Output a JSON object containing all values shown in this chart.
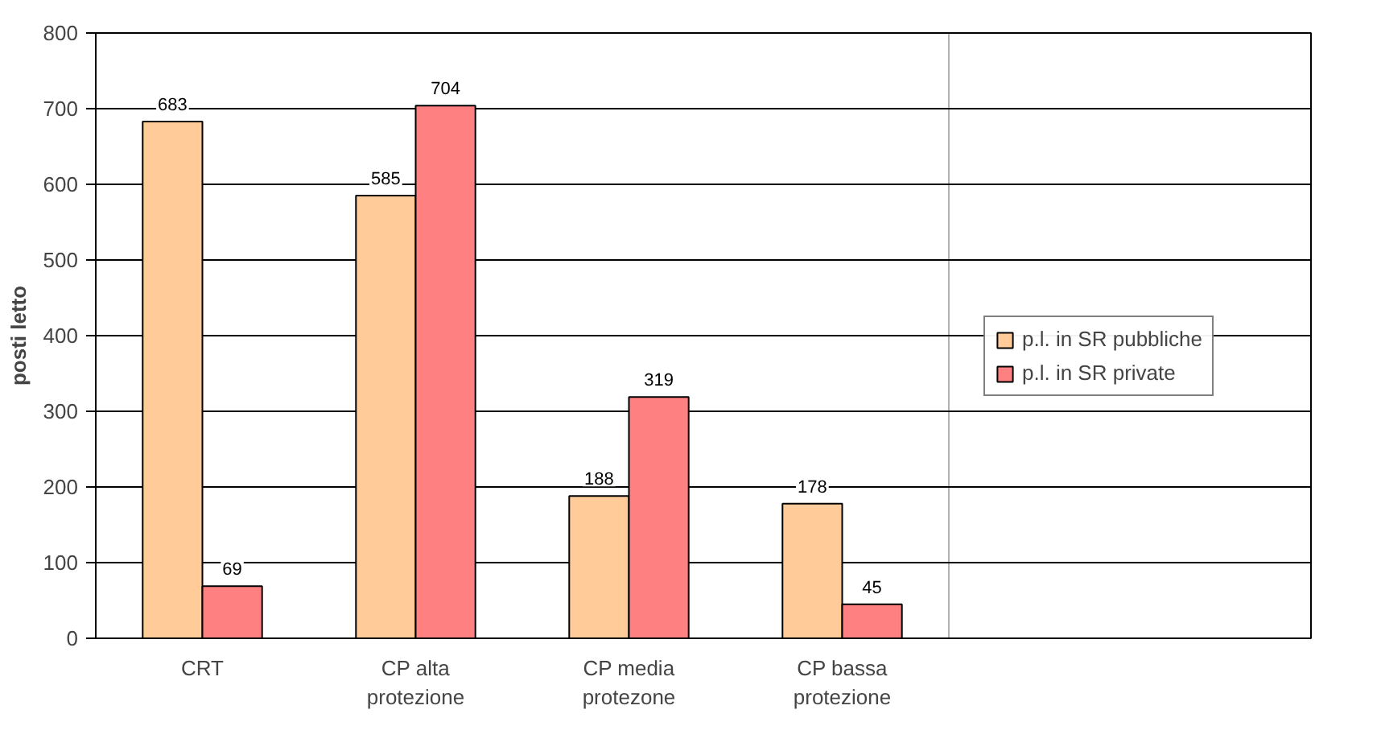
{
  "chart_data": {
    "type": "bar",
    "ylabel": "posti letto",
    "categories": [
      "CRT",
      "CP alta\nprotezione",
      "CP media\nprotezone",
      "CP bassa\nprotezione"
    ],
    "series": [
      {
        "name": "p.l. in SR pubbliche",
        "color": "#ffcc99",
        "values": [
          683,
          585,
          188,
          178
        ]
      },
      {
        "name": "p.l. in SR private",
        "color": "#ff8080",
        "values": [
          69,
          704,
          319,
          45
        ]
      }
    ],
    "ylim": [
      0,
      800
    ],
    "yticks": [
      0,
      100,
      200,
      300,
      400,
      500,
      600,
      700,
      800
    ],
    "grid": "y",
    "legend": "right",
    "data_labels": true
  }
}
